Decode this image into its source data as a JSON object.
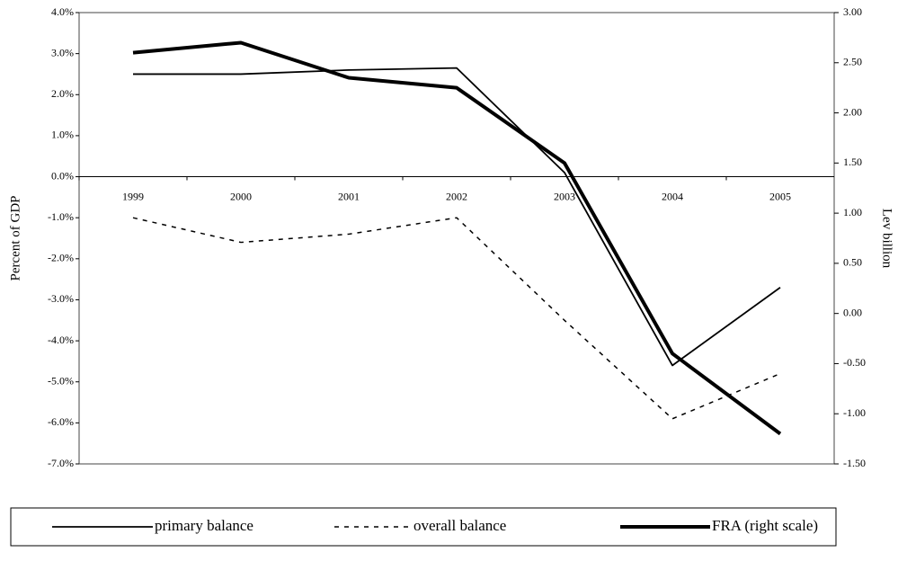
{
  "chart_data": {
    "type": "line",
    "categories": [
      "1999",
      "2000",
      "2001",
      "2002",
      "2003",
      "2004",
      "2005"
    ],
    "y_label": "Percent of GDP",
    "y2_label": "Lev billion",
    "ylim": [
      -7,
      4
    ],
    "yticks": [
      {
        "value": 4,
        "label": "4.0%"
      },
      {
        "value": 3,
        "label": "3.0%"
      },
      {
        "value": 2,
        "label": "2.0%"
      },
      {
        "value": 1,
        "label": "1.0%"
      },
      {
        "value": 0,
        "label": "0.0%"
      },
      {
        "value": -1,
        "label": "-1.0%"
      },
      {
        "value": -2,
        "label": "-2.0%"
      },
      {
        "value": -3,
        "label": "-3.0%"
      },
      {
        "value": -4,
        "label": "-4.0%"
      },
      {
        "value": -5,
        "label": "-5.0%"
      },
      {
        "value": -6,
        "label": "-6.0%"
      },
      {
        "value": -7,
        "label": "-7.0%"
      }
    ],
    "y2lim": [
      -1.5,
      3
    ],
    "y2ticks": [
      {
        "value": 3,
        "label": "3.00"
      },
      {
        "value": 2.5,
        "label": "2.50"
      },
      {
        "value": 2,
        "label": "2.00"
      },
      {
        "value": 1.5,
        "label": "1.50"
      },
      {
        "value": 1,
        "label": "1.00"
      },
      {
        "value": 0.5,
        "label": "0.50"
      },
      {
        "value": 0,
        "label": "0.00"
      },
      {
        "value": -0.5,
        "label": "-0.50"
      },
      {
        "value": -1,
        "label": "-1.00"
      },
      {
        "value": -1.5,
        "label": "-1.50"
      }
    ],
    "legend_position": "bottom",
    "series": [
      {
        "name": "primary balance",
        "color": "#000000",
        "line_style": "solid",
        "values": [
          2.5,
          2.5,
          2.6,
          2.65,
          0.1,
          -4.6,
          -2.7
        ]
      },
      {
        "name": "overall balance",
        "color": "#000000",
        "line_style": "dashed",
        "values": [
          -1.0,
          -1.6,
          -1.4,
          -1.0,
          -3.5,
          -5.9,
          -4.8
        ]
      },
      {
        "name": "FRA (right scale)",
        "color": "#000000",
        "line_style": "thick",
        "axis": "y2",
        "values": [
          2.6,
          2.7,
          2.35,
          2.25,
          1.5,
          -0.4,
          -1.2
        ]
      }
    ]
  }
}
